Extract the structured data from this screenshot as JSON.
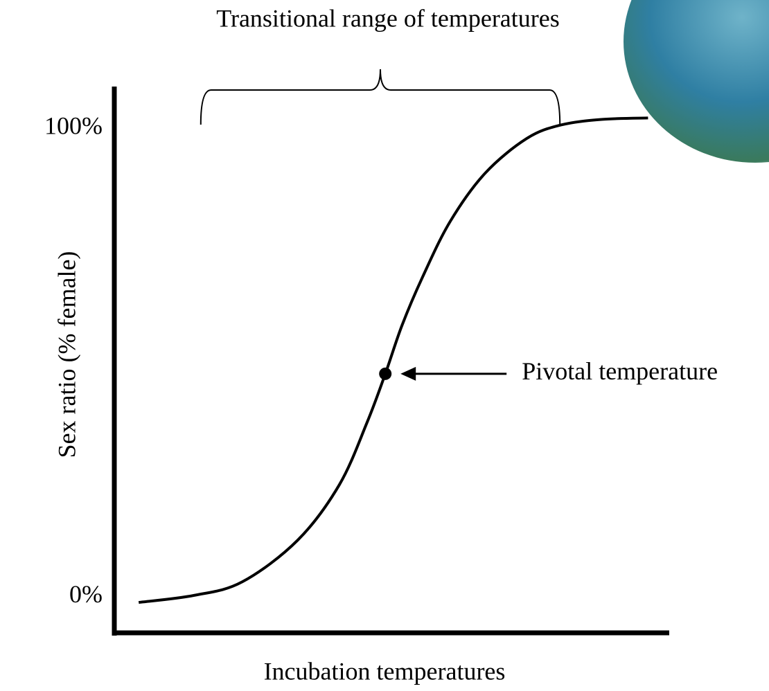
{
  "chart_data": {
    "type": "line",
    "title": "Transitional range of temperatures",
    "x_label": "Incubation temperatures",
    "y_label": "Sex ratio (% female)",
    "color": "#000000",
    "x": [
      4.4,
      14.4,
      23.1,
      33.1,
      40.6,
      45.6,
      48.9,
      51.9,
      55.6,
      60.6,
      66.9,
      74.4,
      80.6,
      88.1,
      96.3
    ],
    "values": [
      -1.2,
      0.3,
      3.2,
      12.1,
      23.9,
      37.2,
      47.6,
      57.9,
      68.2,
      80.1,
      90.4,
      97.8,
      100.7,
      101.9,
      102.2
    ],
    "xlim": [
      0,
      100
    ],
    "ylim": [
      -7.4,
      108.9
    ],
    "yticks": [
      {
        "value": 0,
        "label": "0%"
      },
      {
        "value": 100,
        "label": "100%"
      }
    ],
    "annotations": [
      {
        "text": "Pivotal temperature",
        "x": 48.9,
        "y": 47.6
      },
      {
        "x_range": [
          15.6,
          80.4
        ]
      }
    ]
  }
}
